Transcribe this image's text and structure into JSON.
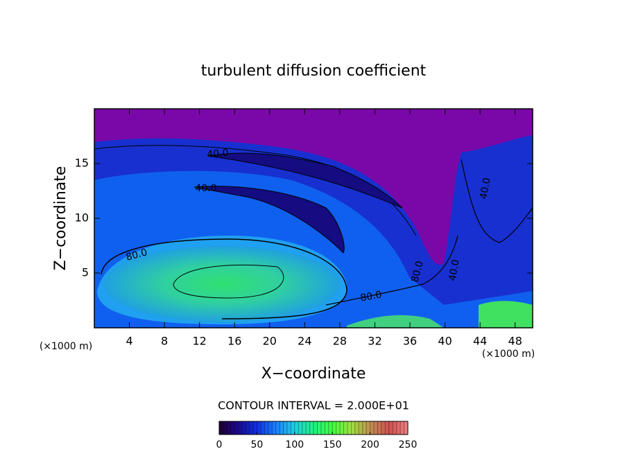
{
  "chart_data": {
    "type": "contour",
    "title": "turbulent diffusion coefficient",
    "xlabel": "X−coordinate",
    "ylabel": "Z−coordinate",
    "x_unit_labels": [
      "(×1000 m)",
      "(×1000 m)"
    ],
    "xlim": [
      0,
      50
    ],
    "xticks": [
      4,
      8,
      12,
      16,
      20,
      24,
      28,
      32,
      36,
      40,
      44,
      48
    ],
    "ylim": [
      0,
      20
    ],
    "yticks": [
      5,
      10,
      15
    ],
    "contour_labels": [
      "40.0",
      "40.0",
      "80.0",
      "80.0",
      "40.0",
      "80.0",
      "40.0"
    ],
    "contour_interval_text": "CONTOUR INTERVAL = 2.000E+01",
    "colorbar": {
      "clim": [
        0,
        250
      ],
      "ticks": [
        0,
        50,
        100,
        150,
        200,
        250
      ],
      "colormap": [
        "#200030",
        "#1a0a90",
        "#1030e0",
        "#1a80ff",
        "#20d0e0",
        "#20f080",
        "#40ff40",
        "#a0e040",
        "#c09050",
        "#d05050",
        "#f08080"
      ]
    }
  }
}
